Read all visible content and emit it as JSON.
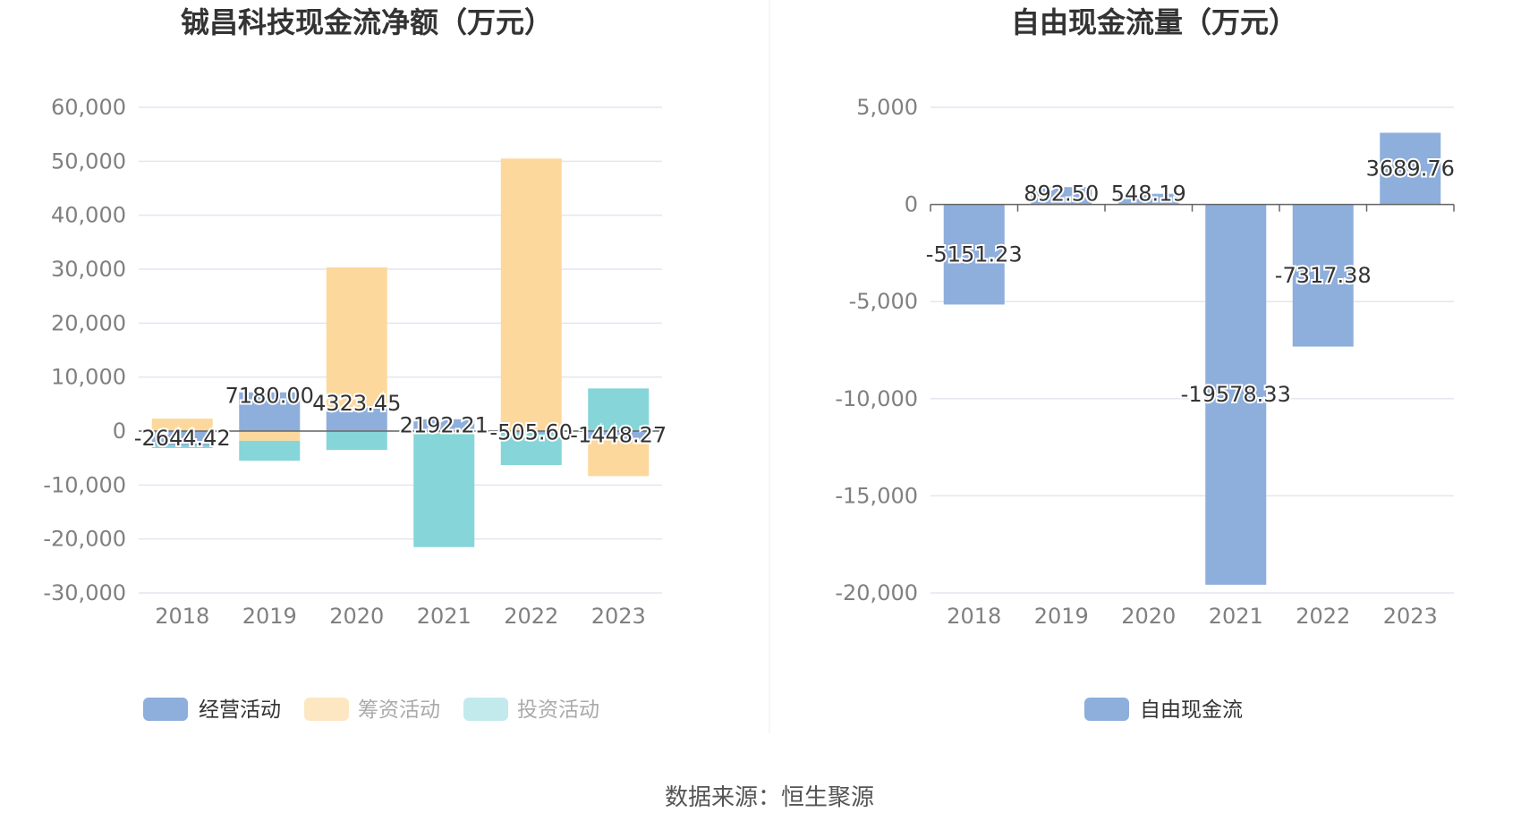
{
  "source_text": "数据来源：恒生聚源",
  "colors": {
    "operating": "#8eaedc",
    "financing": "#fdd89c",
    "investing": "#85d5d9",
    "fcf": "#8eaedc",
    "grid": "#e3e6f0",
    "axis_text": "#808080",
    "title": "#333333"
  },
  "chart_data": [
    {
      "type": "bar",
      "stacked": true,
      "title": "铖昌科技现金流净额（万元）",
      "categories": [
        "2018",
        "2019",
        "2020",
        "2021",
        "2022",
        "2023"
      ],
      "ylim": [
        -30000,
        60000
      ],
      "y_ticks": [
        60000,
        50000,
        40000,
        30000,
        20000,
        10000,
        0,
        -10000,
        -20000,
        -30000
      ],
      "y_tick_labels": [
        "60,000",
        "50,000",
        "40,000",
        "30,000",
        "20,000",
        "10,000",
        "0",
        "-10,000",
        "-20,000",
        "-30,000"
      ],
      "grid": true,
      "legend_position": "bottom",
      "series": [
        {
          "name": "经营活动",
          "values": [
            -2644.42,
            7180.0,
            4323.45,
            2192.21,
            -505.6,
            -1448.27
          ]
        },
        {
          "name": "筹资活动",
          "values": [
            2300,
            -1800,
            26000,
            -500,
            50500,
            -6900
          ]
        },
        {
          "name": "投资活动",
          "values": [
            -500,
            -3700,
            -3500,
            -21000,
            -5800,
            7900
          ]
        }
      ],
      "data_labels": [
        "-2644.42",
        "7180.00",
        "4323.45",
        "2192.21",
        "-505.60",
        "-1448.27"
      ]
    },
    {
      "type": "bar",
      "title": "自由现金流量（万元）",
      "categories": [
        "2018",
        "2019",
        "2020",
        "2021",
        "2022",
        "2023"
      ],
      "ylim": [
        -20000,
        5000
      ],
      "y_ticks": [
        5000,
        0,
        -5000,
        -10000,
        -15000,
        -20000
      ],
      "y_tick_labels": [
        "5,000",
        "0",
        "-5,000",
        "-10,000",
        "-15,000",
        "-20,000"
      ],
      "grid": true,
      "legend_position": "bottom",
      "series": [
        {
          "name": "自由现金流",
          "values": [
            -5151.23,
            892.5,
            548.19,
            -19578.33,
            -7317.38,
            3689.76
          ]
        }
      ],
      "data_labels": [
        "-5151.23",
        "892.50",
        "548.19",
        "-19578.33",
        "-7317.38",
        "3689.76"
      ]
    }
  ]
}
